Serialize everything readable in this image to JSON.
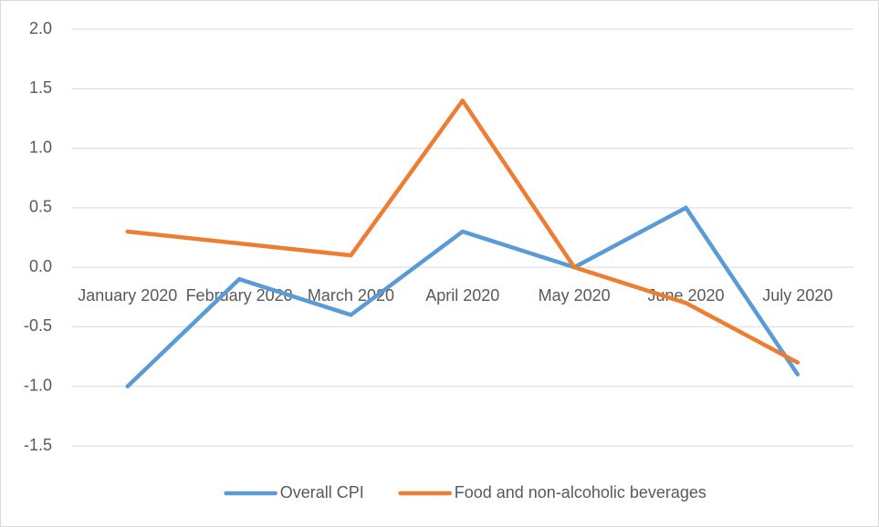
{
  "chart_data": {
    "type": "line",
    "categories": [
      "January 2020",
      "February 2020",
      "March 2020",
      "April 2020",
      "May 2020",
      "June 2020",
      "July 2020"
    ],
    "series": [
      {
        "name": "Overall CPI",
        "color": "#5b9bd5",
        "values": [
          -1.0,
          -0.1,
          -0.4,
          0.3,
          0.0,
          0.5,
          -0.9
        ]
      },
      {
        "name": "Food and non-alcoholic beverages",
        "color": "#ed7d31",
        "values": [
          0.3,
          0.2,
          0.1,
          1.4,
          0.0,
          -0.3,
          -0.8
        ]
      }
    ],
    "ylim": [
      -1.5,
      2.0
    ],
    "yticks": [
      {
        "value": -1.5,
        "label": "-1.5"
      },
      {
        "value": -1.0,
        "label": "-1.0"
      },
      {
        "value": -0.5,
        "label": "-0.5"
      },
      {
        "value": 0.0,
        "label": "0.0"
      },
      {
        "value": 0.5,
        "label": "0.5"
      },
      {
        "value": 1.0,
        "label": "1.0"
      },
      {
        "value": 1.5,
        "label": "1.5"
      },
      {
        "value": 2.0,
        "label": "2.0"
      }
    ],
    "grid": true,
    "legend": "bottom"
  }
}
